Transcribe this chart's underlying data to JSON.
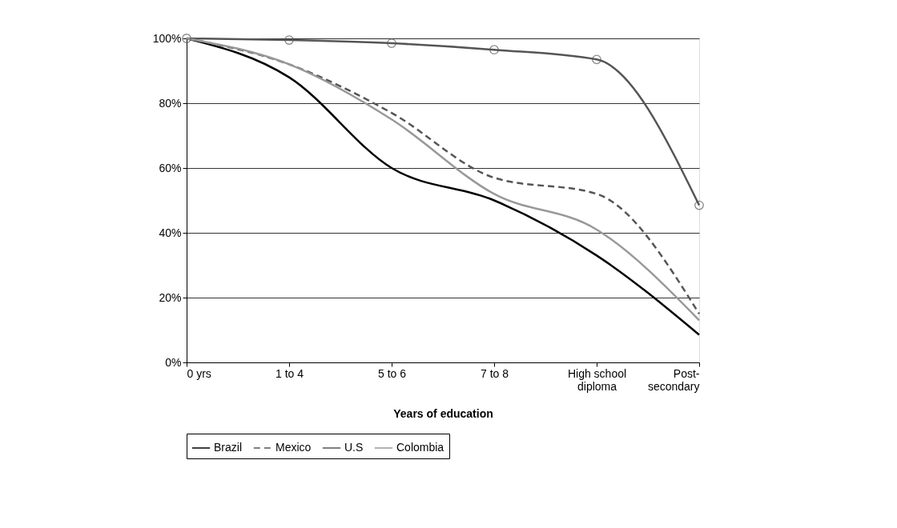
{
  "chart_data": {
    "type": "line",
    "xlabel": "Years of education",
    "categories": [
      "0 yrs",
      "1 to 4",
      "5 to 6",
      "7 to 8",
      "High school diploma",
      "Post-secondary"
    ],
    "series": [
      {
        "name": "Brazil",
        "color": "#000000",
        "line_style": "solid",
        "marker": "none",
        "values": [
          100,
          88,
          60,
          50,
          33,
          8.5
        ]
      },
      {
        "name": "Mexico",
        "color": "#555555",
        "line_style": "dashed",
        "marker": "none",
        "values": [
          100,
          92,
          77,
          57,
          52,
          15
        ]
      },
      {
        "name": "U.S",
        "color": "#555555",
        "line_style": "solid",
        "marker": "circle",
        "values": [
          100,
          99.5,
          98.5,
          96.5,
          93.5,
          48.5
        ]
      },
      {
        "name": "Colombia",
        "color": "#999999",
        "line_style": "solid",
        "marker": "none",
        "values": [
          100,
          92,
          75,
          52,
          41,
          13
        ]
      }
    ],
    "ylim": [
      0,
      100
    ],
    "yticks": [
      {
        "value": 0,
        "label": "0%"
      },
      {
        "value": 20,
        "label": "20%"
      },
      {
        "value": 40,
        "label": "40%"
      },
      {
        "value": 60,
        "label": "60%"
      },
      {
        "value": 80,
        "label": "80%"
      },
      {
        "value": 100,
        "label": "100%"
      }
    ],
    "grid": "y",
    "legend": "bottom"
  }
}
